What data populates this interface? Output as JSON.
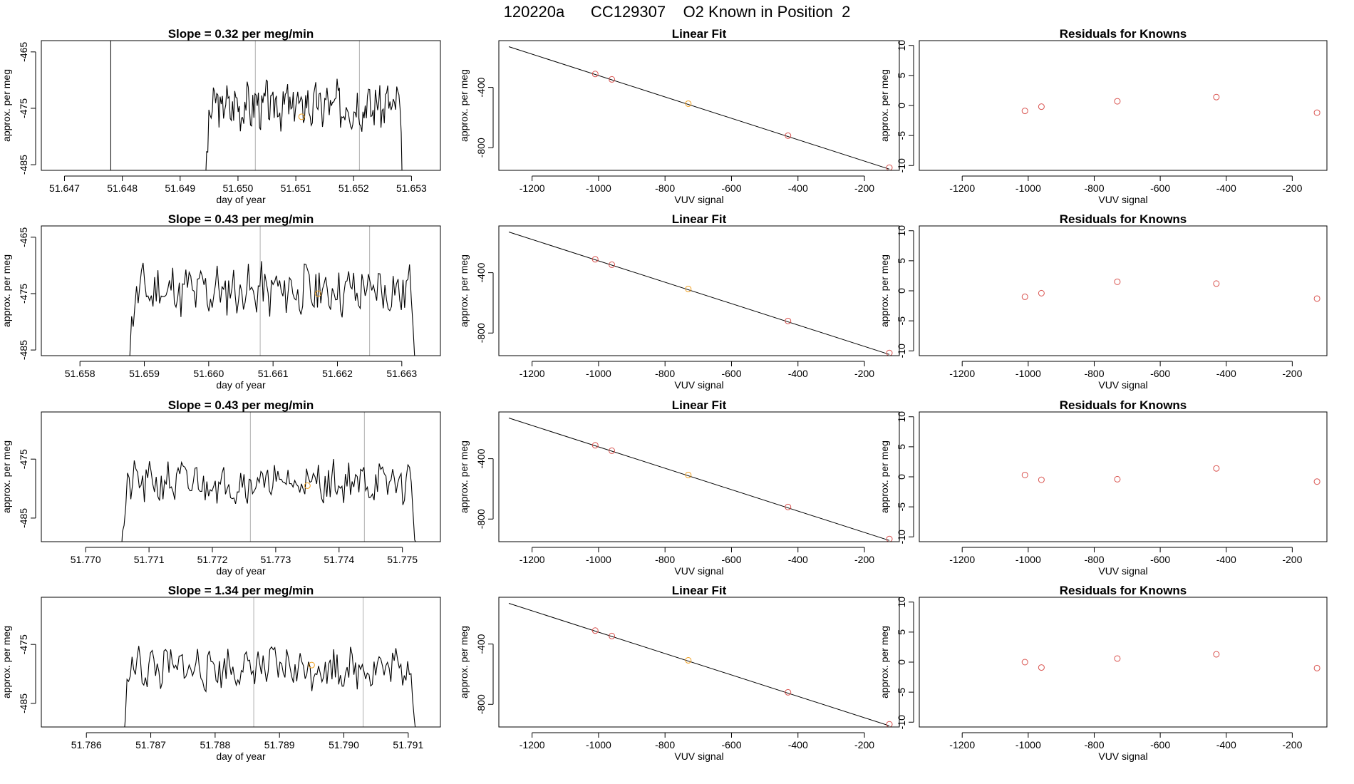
{
  "main_title": "120220a      CC129307    O2 Known in Position  2",
  "colors": {
    "series": "#000000",
    "reference_line": "#b0b0b0",
    "known_point": "#d9534f",
    "current_point": "#f0a020"
  },
  "chart_data": [
    {
      "type": "line",
      "panel": "time-1",
      "title": "Slope =  0.32  per meg/min",
      "xlabel": "day of year",
      "ylabel": "approx. per meg",
      "xlim": [
        51.6466,
        51.6535
      ],
      "ylim": [
        -486,
        -463
      ],
      "xticks": [
        51.647,
        51.648,
        51.649,
        51.65,
        51.651,
        51.652,
        51.653
      ],
      "xtick_labels": [
        "51.647",
        "51.648",
        "51.649",
        "51.650",
        "51.651",
        "51.652",
        "51.653"
      ],
      "yticks": [
        -465,
        -475,
        -485
      ],
      "ytick_labels": [
        "-465",
        "-475",
        "-485"
      ],
      "start": 51.6494,
      "end": 51.6529,
      "mean": -474.5,
      "amp": 3.5,
      "seed": 3,
      "vlines": [
        {
          "x": 51.6478,
          "color": "#000000"
        },
        {
          "x": 51.6503,
          "color": "#b0b0b0"
        },
        {
          "x": 51.6521,
          "color": "#b0b0b0"
        }
      ],
      "marker": {
        "x": 51.6511,
        "y": -476.5
      }
    },
    {
      "type": "line",
      "panel": "time-2",
      "title": "Slope =  0.43  per meg/min",
      "xlabel": "day of year",
      "ylabel": "approx. per meg",
      "xlim": [
        51.6574,
        51.6636
      ],
      "ylim": [
        -486,
        -463
      ],
      "xticks": [
        51.658,
        51.659,
        51.66,
        51.661,
        51.662,
        51.663
      ],
      "xtick_labels": [
        "51.658",
        "51.659",
        "51.660",
        "51.661",
        "51.662",
        "51.663"
      ],
      "yticks": [
        -465,
        -475,
        -485
      ],
      "ytick_labels": [
        "-465",
        "-475",
        "-485"
      ],
      "start": 51.6587,
      "end": 51.6633,
      "mean": -474.5,
      "amp": 3.8,
      "seed": 11,
      "vlines": [
        {
          "x": 51.6608,
          "color": "#b0b0b0"
        },
        {
          "x": 51.6625,
          "color": "#b0b0b0"
        }
      ],
      "marker": {
        "x": 51.6617,
        "y": -475.0
      }
    },
    {
      "type": "line",
      "panel": "time-3",
      "title": "Slope =  0.43  per meg/min",
      "xlabel": "day of year",
      "ylabel": "approx. per meg",
      "xlim": [
        51.7693,
        51.7756
      ],
      "ylim": [
        -489,
        -467
      ],
      "xticks": [
        51.77,
        51.771,
        51.772,
        51.773,
        51.774,
        51.775
      ],
      "xtick_labels": [
        "51.770",
        "51.771",
        "51.772",
        "51.773",
        "51.774",
        "51.775"
      ],
      "yticks": [
        -475,
        -485
      ],
      "ytick_labels": [
        "-475",
        "-485"
      ],
      "start": 51.7705,
      "end": 51.7753,
      "mean": -479.0,
      "amp": 3.0,
      "seed": 21,
      "vlines": [
        {
          "x": 51.7726,
          "color": "#b0b0b0"
        },
        {
          "x": 51.7744,
          "color": "#b0b0b0"
        }
      ],
      "marker": {
        "x": 51.7735,
        "y": -479.5
      }
    },
    {
      "type": "line",
      "panel": "time-4",
      "title": "Slope =  1.34  per meg/min",
      "xlabel": "day of year",
      "ylabel": "approx. per meg",
      "xlim": [
        51.7853,
        51.7915
      ],
      "ylim": [
        -489,
        -467
      ],
      "xticks": [
        51.786,
        51.787,
        51.788,
        51.789,
        51.79,
        51.791
      ],
      "xtick_labels": [
        "51.786",
        "51.787",
        "51.788",
        "51.789",
        "51.790",
        "51.791"
      ],
      "yticks": [
        -475,
        -485
      ],
      "ytick_labels": [
        "-475",
        "-485"
      ],
      "start": 51.7865,
      "end": 51.7912,
      "mean": -479.0,
      "amp": 3.0,
      "seed": 33,
      "vlines": [
        {
          "x": 51.7886,
          "color": "#b0b0b0"
        },
        {
          "x": 51.7903,
          "color": "#b0b0b0"
        }
      ],
      "marker": {
        "x": 51.7895,
        "y": -478.5
      }
    },
    {
      "type": "scatter",
      "panel": "fit-1",
      "title": "Linear Fit",
      "xlabel": "VUV signal",
      "ylabel": "approx. per meg",
      "xlim": [
        -1300,
        -95
      ],
      "ylim": [
        -950,
        -90
      ],
      "xticks": [
        -1200,
        -1000,
        -800,
        -600,
        -400,
        -200
      ],
      "xtick_labels": [
        "-1200",
        "-1000",
        "-800",
        "-600",
        "-400",
        "-200"
      ],
      "yticks": [
        -400,
        -800
      ],
      "ytick_labels": [
        "-400",
        "-800"
      ],
      "line": {
        "x": [
          -1270,
          -125
        ],
        "y": [
          -130,
          -942
        ]
      },
      "points": [
        {
          "x": -1010,
          "y": -311
        },
        {
          "x": -960,
          "y": -347
        },
        {
          "x": -730,
          "y": -508
        },
        {
          "x": -430,
          "y": -720
        },
        {
          "x": -125,
          "y": -932
        }
      ],
      "highlight_index": 2
    },
    {
      "type": "scatter",
      "panel": "fit-2",
      "title": "Linear Fit",
      "xlabel": "VUV signal",
      "ylabel": "approx. per meg",
      "xlim": [
        -1300,
        -95
      ],
      "ylim": [
        -950,
        -90
      ],
      "xticks": [
        -1200,
        -1000,
        -800,
        -600,
        -400,
        -200
      ],
      "xtick_labels": [
        "-1200",
        "-1000",
        "-800",
        "-600",
        "-400",
        "-200"
      ],
      "yticks": [
        -400,
        -800
      ],
      "ytick_labels": [
        "-400",
        "-800"
      ],
      "line": {
        "x": [
          -1270,
          -125
        ],
        "y": [
          -130,
          -942
        ]
      },
      "points": [
        {
          "x": -1010,
          "y": -311
        },
        {
          "x": -960,
          "y": -347
        },
        {
          "x": -730,
          "y": -508
        },
        {
          "x": -430,
          "y": -720
        },
        {
          "x": -125,
          "y": -932
        }
      ],
      "highlight_index": 2
    },
    {
      "type": "scatter",
      "panel": "fit-3",
      "title": "Linear Fit",
      "xlabel": "VUV signal",
      "ylabel": "approx. per meg",
      "xlim": [
        -1300,
        -95
      ],
      "ylim": [
        -950,
        -90
      ],
      "xticks": [
        -1200,
        -1000,
        -800,
        -600,
        -400,
        -200
      ],
      "xtick_labels": [
        "-1200",
        "-1000",
        "-800",
        "-600",
        "-400",
        "-200"
      ],
      "yticks": [
        -400,
        -800
      ],
      "ytick_labels": [
        "-400",
        "-800"
      ],
      "line": {
        "x": [
          -1270,
          -125
        ],
        "y": [
          -130,
          -942
        ]
      },
      "points": [
        {
          "x": -1010,
          "y": -311
        },
        {
          "x": -960,
          "y": -347
        },
        {
          "x": -730,
          "y": -508
        },
        {
          "x": -430,
          "y": -720
        },
        {
          "x": -125,
          "y": -932
        }
      ],
      "highlight_index": 2
    },
    {
      "type": "scatter",
      "panel": "fit-4",
      "title": "Linear Fit",
      "xlabel": "VUV signal",
      "ylabel": "approx. per meg",
      "xlim": [
        -1300,
        -95
      ],
      "ylim": [
        -950,
        -90
      ],
      "xticks": [
        -1200,
        -1000,
        -800,
        -600,
        -400,
        -200
      ],
      "xtick_labels": [
        "-1200",
        "-1000",
        "-800",
        "-600",
        "-400",
        "-200"
      ],
      "yticks": [
        -400,
        -800
      ],
      "ytick_labels": [
        "-400",
        "-800"
      ],
      "line": {
        "x": [
          -1270,
          -125
        ],
        "y": [
          -130,
          -942
        ]
      },
      "points": [
        {
          "x": -1010,
          "y": -311
        },
        {
          "x": -960,
          "y": -347
        },
        {
          "x": -730,
          "y": -508
        },
        {
          "x": -430,
          "y": -720
        },
        {
          "x": -125,
          "y": -932
        }
      ],
      "highlight_index": 2
    },
    {
      "type": "scatter",
      "panel": "resid-1",
      "title": "Residuals for Knowns",
      "xlabel": "VUV signal",
      "ylabel": "approx. per meg",
      "xlim": [
        -1330,
        -95
      ],
      "ylim": [
        -10.8,
        10.8
      ],
      "xticks": [
        -1200,
        -1000,
        -800,
        -600,
        -400,
        -200
      ],
      "xtick_labels": [
        "-1200",
        "-1000",
        "-800",
        "-600",
        "-400",
        "-200"
      ],
      "yticks": [
        10,
        5,
        0,
        -5,
        -10
      ],
      "ytick_labels": [
        "10",
        "5",
        "0",
        "-5",
        "-10"
      ],
      "points": [
        {
          "x": -1010,
          "y": -0.9
        },
        {
          "x": -960,
          "y": -0.2
        },
        {
          "x": -730,
          "y": 0.7
        },
        {
          "x": -430,
          "y": 1.4
        },
        {
          "x": -125,
          "y": -1.2
        }
      ]
    },
    {
      "type": "scatter",
      "panel": "resid-2",
      "title": "Residuals for Knowns",
      "xlabel": "VUV signal",
      "ylabel": "approx. per meg",
      "xlim": [
        -1330,
        -95
      ],
      "ylim": [
        -10.8,
        10.8
      ],
      "xticks": [
        -1200,
        -1000,
        -800,
        -600,
        -400,
        -200
      ],
      "xtick_labels": [
        "-1200",
        "-1000",
        "-800",
        "-600",
        "-400",
        "-200"
      ],
      "yticks": [
        10,
        5,
        0,
        -5,
        -10
      ],
      "ytick_labels": [
        "10",
        "5",
        "0",
        "-5",
        "-10"
      ],
      "points": [
        {
          "x": -1010,
          "y": -1.0
        },
        {
          "x": -960,
          "y": -0.4
        },
        {
          "x": -730,
          "y": 1.5
        },
        {
          "x": -430,
          "y": 1.2
        },
        {
          "x": -125,
          "y": -1.3
        }
      ]
    },
    {
      "type": "scatter",
      "panel": "resid-3",
      "title": "Residuals for Knowns",
      "xlabel": "VUV signal",
      "ylabel": "approx. per meg",
      "xlim": [
        -1330,
        -95
      ],
      "ylim": [
        -10.8,
        10.8
      ],
      "xticks": [
        -1200,
        -1000,
        -800,
        -600,
        -400,
        -200
      ],
      "xtick_labels": [
        "-1200",
        "-1000",
        "-800",
        "-600",
        "-400",
        "-200"
      ],
      "yticks": [
        10,
        5,
        0,
        -5,
        -10
      ],
      "ytick_labels": [
        "10",
        "5",
        "0",
        "-5",
        "-10"
      ],
      "points": [
        {
          "x": -1010,
          "y": 0.3
        },
        {
          "x": -960,
          "y": -0.5
        },
        {
          "x": -730,
          "y": -0.4
        },
        {
          "x": -430,
          "y": 1.4
        },
        {
          "x": -125,
          "y": -0.8
        }
      ]
    },
    {
      "type": "scatter",
      "panel": "resid-4",
      "title": "Residuals for Knowns",
      "xlabel": "VUV signal",
      "ylabel": "approx. per meg",
      "xlim": [
        -1330,
        -95
      ],
      "ylim": [
        -10.8,
        10.8
      ],
      "xticks": [
        -1200,
        -1000,
        -800,
        -600,
        -400,
        -200
      ],
      "xtick_labels": [
        "-1200",
        "-1000",
        "-800",
        "-600",
        "-400",
        "-200"
      ],
      "yticks": [
        10,
        5,
        0,
        -5,
        -10
      ],
      "ytick_labels": [
        "10",
        "5",
        "0",
        "-5",
        "-10"
      ],
      "points": [
        {
          "x": -1010,
          "y": 0.0
        },
        {
          "x": -960,
          "y": -0.9
        },
        {
          "x": -730,
          "y": 0.6
        },
        {
          "x": -430,
          "y": 1.3
        },
        {
          "x": -125,
          "y": -1.0
        }
      ]
    }
  ]
}
